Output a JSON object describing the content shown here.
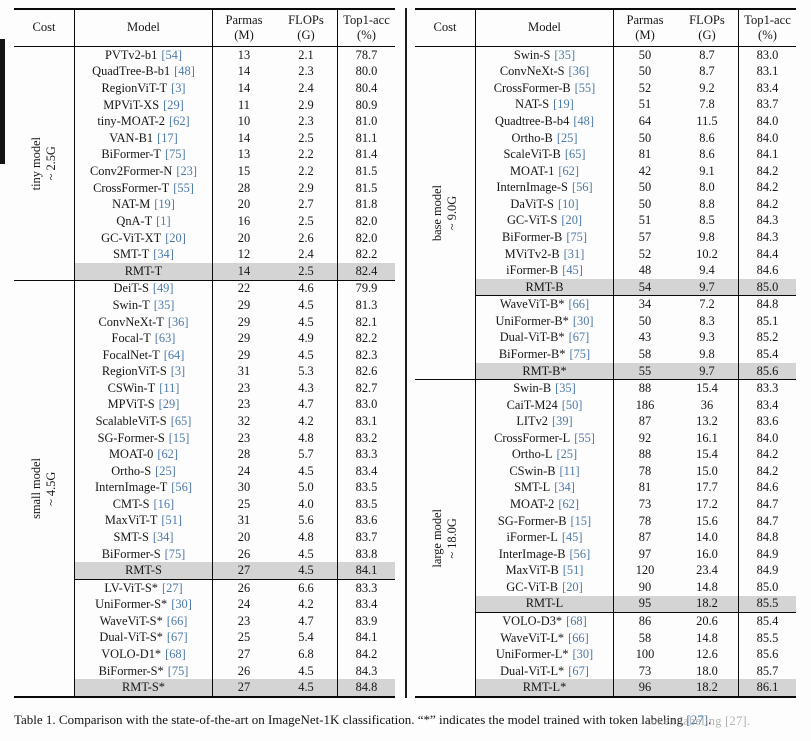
{
  "colors": {
    "cite": "#4d79a8",
    "highlight": "#d4d4d4",
    "rule": "#0a0a0a"
  },
  "header": {
    "cost": "Cost",
    "model": "Model",
    "params": [
      "Parmas",
      "(M)"
    ],
    "flops": [
      "FLOPs",
      "(G)"
    ],
    "acc": [
      "Top1-acc",
      "(%)"
    ]
  },
  "tables": [
    {
      "name": "left-table",
      "sections": [
        {
          "cost_label": [
            "tiny model",
            "~ 2.5G"
          ],
          "groups": [
            [
              {
                "model": "PVTv2-b1",
                "cite": "[54]",
                "params": "13",
                "flops": "2.1",
                "acc": "78.7"
              },
              {
                "model": "QuadTree-B-b1",
                "cite": "[48]",
                "params": "14",
                "flops": "2.3",
                "acc": "80.0"
              },
              {
                "model": "RegionViT-T",
                "cite": "[3]",
                "params": "14",
                "flops": "2.4",
                "acc": "80.4"
              },
              {
                "model": "MPViT-XS",
                "cite": "[29]",
                "params": "11",
                "flops": "2.9",
                "acc": "80.9"
              },
              {
                "model": "tiny-MOAT-2",
                "cite": "[62]",
                "params": "10",
                "flops": "2.3",
                "acc": "81.0"
              },
              {
                "model": "VAN-B1",
                "cite": "[17]",
                "params": "14",
                "flops": "2.5",
                "acc": "81.1"
              },
              {
                "model": "BiFormer-T",
                "cite": "[75]",
                "params": "13",
                "flops": "2.2",
                "acc": "81.4"
              },
              {
                "model": "Conv2Former-N",
                "cite": "[23]",
                "params": "15",
                "flops": "2.2",
                "acc": "81.5"
              },
              {
                "model": "CrossFormer-T",
                "cite": "[55]",
                "params": "28",
                "flops": "2.9",
                "acc": "81.5"
              },
              {
                "model": "NAT-M",
                "cite": "[19]",
                "params": "20",
                "flops": "2.7",
                "acc": "81.8"
              },
              {
                "model": "QnA-T",
                "cite": "[1]",
                "params": "16",
                "flops": "2.5",
                "acc": "82.0"
              },
              {
                "model": "GC-ViT-XT",
                "cite": "[20]",
                "params": "20",
                "flops": "2.6",
                "acc": "82.0"
              },
              {
                "model": "SMT-T",
                "cite": "[34]",
                "params": "12",
                "flops": "2.4",
                "acc": "82.2"
              },
              {
                "model": "RMT-T",
                "cite": null,
                "params": "14",
                "flops": "2.5",
                "acc": "82.4",
                "highlight": true
              }
            ]
          ]
        },
        {
          "cost_label": [
            "small model",
            "~ 4.5G"
          ],
          "groups": [
            [
              {
                "model": "DeiT-S",
                "cite": "[49]",
                "params": "22",
                "flops": "4.6",
                "acc": "79.9"
              },
              {
                "model": "Swin-T",
                "cite": "[35]",
                "params": "29",
                "flops": "4.5",
                "acc": "81.3"
              },
              {
                "model": "ConvNeXt-T",
                "cite": "[36]",
                "params": "29",
                "flops": "4.5",
                "acc": "82.1"
              },
              {
                "model": "Focal-T",
                "cite": "[63]",
                "params": "29",
                "flops": "4.9",
                "acc": "82.2"
              },
              {
                "model": "FocalNet-T",
                "cite": "[64]",
                "params": "29",
                "flops": "4.5",
                "acc": "82.3"
              },
              {
                "model": "RegionViT-S",
                "cite": "[3]",
                "params": "31",
                "flops": "5.3",
                "acc": "82.6"
              },
              {
                "model": "CSWin-T",
                "cite": "[11]",
                "params": "23",
                "flops": "4.3",
                "acc": "82.7"
              },
              {
                "model": "MPViT-S",
                "cite": "[29]",
                "params": "23",
                "flops": "4.7",
                "acc": "83.0"
              },
              {
                "model": "ScalableViT-S",
                "cite": "[65]",
                "params": "32",
                "flops": "4.2",
                "acc": "83.1"
              },
              {
                "model": "SG-Former-S",
                "cite": "[15]",
                "params": "23",
                "flops": "4.8",
                "acc": "83.2"
              },
              {
                "model": "MOAT-0",
                "cite": "[62]",
                "params": "28",
                "flops": "5.7",
                "acc": "83.3"
              },
              {
                "model": "Ortho-S",
                "cite": "[25]",
                "params": "24",
                "flops": "4.5",
                "acc": "83.4"
              },
              {
                "model": "InternImage-T",
                "cite": "[56]",
                "params": "30",
                "flops": "5.0",
                "acc": "83.5"
              },
              {
                "model": "CMT-S",
                "cite": "[16]",
                "params": "25",
                "flops": "4.0",
                "acc": "83.5"
              },
              {
                "model": "MaxViT-T",
                "cite": "[51]",
                "params": "31",
                "flops": "5.6",
                "acc": "83.6"
              },
              {
                "model": "SMT-S",
                "cite": "[34]",
                "params": "20",
                "flops": "4.8",
                "acc": "83.7"
              },
              {
                "model": "BiFormer-S",
                "cite": "[75]",
                "params": "26",
                "flops": "4.5",
                "acc": "83.8"
              },
              {
                "model": "RMT-S",
                "cite": null,
                "params": "27",
                "flops": "4.5",
                "acc": "84.1",
                "highlight": true
              }
            ],
            [
              {
                "model": "LV-ViT-S*",
                "cite": "[27]",
                "params": "26",
                "flops": "6.6",
                "acc": "83.3"
              },
              {
                "model": "UniFormer-S*",
                "cite": "[30]",
                "params": "24",
                "flops": "4.2",
                "acc": "83.4"
              },
              {
                "model": "WaveViT-S*",
                "cite": "[66]",
                "params": "23",
                "flops": "4.7",
                "acc": "83.9"
              },
              {
                "model": "Dual-ViT-S*",
                "cite": "[67]",
                "params": "25",
                "flops": "5.4",
                "acc": "84.1"
              },
              {
                "model": "VOLO-D1*",
                "cite": "[68]",
                "params": "27",
                "flops": "6.8",
                "acc": "84.2"
              },
              {
                "model": "BiFormer-S*",
                "cite": "[75]",
                "params": "26",
                "flops": "4.5",
                "acc": "84.3"
              },
              {
                "model": "RMT-S*",
                "cite": null,
                "params": "27",
                "flops": "4.5",
                "acc": "84.8",
                "highlight": true
              }
            ]
          ]
        }
      ]
    },
    {
      "name": "right-table",
      "sections": [
        {
          "cost_label": [
            "base model",
            "~ 9.0G"
          ],
          "groups": [
            [
              {
                "model": "Swin-S",
                "cite": "[35]",
                "params": "50",
                "flops": "8.7",
                "acc": "83.0"
              },
              {
                "model": "ConvNeXt-S",
                "cite": "[36]",
                "params": "50",
                "flops": "8.7",
                "acc": "83.1"
              },
              {
                "model": "CrossFormer-B",
                "cite": "[55]",
                "params": "52",
                "flops": "9.2",
                "acc": "83.4"
              },
              {
                "model": "NAT-S",
                "cite": "[19]",
                "params": "51",
                "flops": "7.8",
                "acc": "83.7"
              },
              {
                "model": "Quadtree-B-b4",
                "cite": "[48]",
                "params": "64",
                "flops": "11.5",
                "acc": "84.0"
              },
              {
                "model": "Ortho-B",
                "cite": "[25]",
                "params": "50",
                "flops": "8.6",
                "acc": "84.0"
              },
              {
                "model": "ScaleViT-B",
                "cite": "[65]",
                "params": "81",
                "flops": "8.6",
                "acc": "84.1"
              },
              {
                "model": "MOAT-1",
                "cite": "[62]",
                "params": "42",
                "flops": "9.1",
                "acc": "84.2"
              },
              {
                "model": "InternImage-S",
                "cite": "[56]",
                "params": "50",
                "flops": "8.0",
                "acc": "84.2"
              },
              {
                "model": "DaViT-S",
                "cite": "[10]",
                "params": "50",
                "flops": "8.8",
                "acc": "84.2"
              },
              {
                "model": "GC-ViT-S",
                "cite": "[20]",
                "params": "51",
                "flops": "8.5",
                "acc": "84.3"
              },
              {
                "model": "BiFormer-B",
                "cite": "[75]",
                "params": "57",
                "flops": "9.8",
                "acc": "84.3"
              },
              {
                "model": "MViTv2-B",
                "cite": "[31]",
                "params": "52",
                "flops": "10.2",
                "acc": "84.4"
              },
              {
                "model": "iFormer-B",
                "cite": "[45]",
                "params": "48",
                "flops": "9.4",
                "acc": "84.6"
              },
              {
                "model": "RMT-B",
                "cite": null,
                "params": "54",
                "flops": "9.7",
                "acc": "85.0",
                "highlight": true
              }
            ],
            [
              {
                "model": "WaveViT-B*",
                "cite": "[66]",
                "params": "34",
                "flops": "7.2",
                "acc": "84.8"
              },
              {
                "model": "UniFormer-B*",
                "cite": "[30]",
                "params": "50",
                "flops": "8.3",
                "acc": "85.1"
              },
              {
                "model": "Dual-ViT-B*",
                "cite": "[67]",
                "params": "43",
                "flops": "9.3",
                "acc": "85.2"
              },
              {
                "model": "BiFormer-B*",
                "cite": "[75]",
                "params": "58",
                "flops": "9.8",
                "acc": "85.4"
              },
              {
                "model": "RMT-B*",
                "cite": null,
                "params": "55",
                "flops": "9.7",
                "acc": "85.6",
                "highlight": true
              }
            ]
          ]
        },
        {
          "cost_label": [
            "large model",
            "~ 18.0G"
          ],
          "groups": [
            [
              {
                "model": "Swin-B",
                "cite": "[35]",
                "params": "88",
                "flops": "15.4",
                "acc": "83.3"
              },
              {
                "model": "CaiT-M24",
                "cite": "[50]",
                "params": "186",
                "flops": "36",
                "acc": "83.4"
              },
              {
                "model": "LITv2",
                "cite": "[39]",
                "params": "87",
                "flops": "13.2",
                "acc": "83.6"
              },
              {
                "model": "CrossFormer-L",
                "cite": "[55]",
                "params": "92",
                "flops": "16.1",
                "acc": "84.0"
              },
              {
                "model": "Ortho-L",
                "cite": "[25]",
                "params": "88",
                "flops": "15.4",
                "acc": "84.2"
              },
              {
                "model": "CSwin-B",
                "cite": "[11]",
                "params": "78",
                "flops": "15.0",
                "acc": "84.2"
              },
              {
                "model": "SMT-L",
                "cite": "[34]",
                "params": "81",
                "flops": "17.7",
                "acc": "84.6"
              },
              {
                "model": "MOAT-2",
                "cite": "[62]",
                "params": "73",
                "flops": "17.2",
                "acc": "84.7"
              },
              {
                "model": "SG-Former-B",
                "cite": "[15]",
                "params": "78",
                "flops": "15.6",
                "acc": "84.7"
              },
              {
                "model": "iFormer-L",
                "cite": "[45]",
                "params": "87",
                "flops": "14.0",
                "acc": "84.8"
              },
              {
                "model": "InterImage-B",
                "cite": "[56]",
                "params": "97",
                "flops": "16.0",
                "acc": "84.9"
              },
              {
                "model": "MaxViT-B",
                "cite": "[51]",
                "params": "120",
                "flops": "23.4",
                "acc": "84.9"
              },
              {
                "model": "GC-ViT-B",
                "cite": "[20]",
                "params": "90",
                "flops": "14.8",
                "acc": "85.0"
              },
              {
                "model": "RMT-L",
                "cite": null,
                "params": "95",
                "flops": "18.2",
                "acc": "85.5",
                "highlight": true
              }
            ],
            [
              {
                "model": "VOLO-D3*",
                "cite": "[68]",
                "params": "86",
                "flops": "20.6",
                "acc": "85.4"
              },
              {
                "model": "WaveViT-L*",
                "cite": "[66]",
                "params": "58",
                "flops": "14.8",
                "acc": "85.5"
              },
              {
                "model": "UniFormer-L*",
                "cite": "[30]",
                "params": "100",
                "flops": "12.6",
                "acc": "85.6"
              },
              {
                "model": "Dual-ViT-L*",
                "cite": "[67]",
                "params": "73",
                "flops": "18.0",
                "acc": "85.7"
              },
              {
                "model": "RMT-L*",
                "cite": null,
                "params": "96",
                "flops": "18.2",
                "acc": "86.1",
                "highlight": true
              }
            ]
          ]
        }
      ]
    }
  ],
  "caption": {
    "prefix": "Table 1. Comparison with the state-of-the-art on ImageNet-1K classification. “*” indicates the model trained with token labeling ",
    "cite": "[27]",
    "suffix": ".",
    "watermark": "token labeling [27]."
  }
}
